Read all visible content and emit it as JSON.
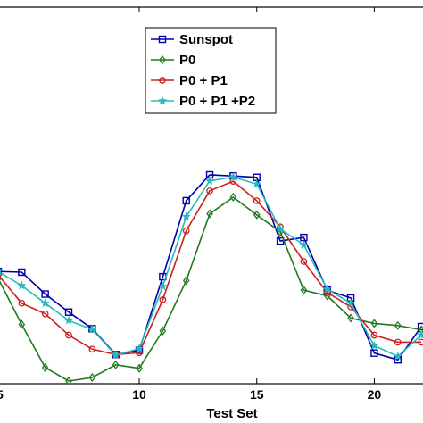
{
  "chart_data": {
    "type": "line",
    "title": "",
    "xlabel": "Test Set",
    "ylabel": "",
    "xlim": [
      4.0,
      22.3
    ],
    "ylim": [
      0,
      1
    ],
    "x_ticks": [
      10,
      15,
      20
    ],
    "x_tick_labels": [
      "10",
      "15",
      "20"
    ],
    "y_ticks": [],
    "grid": false,
    "legend_position": "top-center",
    "x": [
      4,
      5,
      6,
      7,
      8,
      9,
      10,
      11,
      12,
      13,
      14,
      15,
      16,
      17,
      18,
      19,
      20,
      21,
      22
    ],
    "series": [
      {
        "name": "Sunspot",
        "color": "#0000aa",
        "marker": "square",
        "values": [
          0.3,
          0.298,
          0.236,
          0.185,
          0.138,
          0.065,
          0.077,
          0.285,
          0.5,
          0.573,
          0.57,
          0.566,
          0.386,
          0.396,
          0.247,
          0.225,
          0.069,
          0.05,
          0.144
        ]
      },
      {
        "name": "P0",
        "color": "#1f7a1f",
        "marker": "diamond",
        "values": [
          0.28,
          0.15,
          0.028,
          -0.01,
          0.0,
          0.036,
          0.026,
          0.132,
          0.274,
          0.463,
          0.51,
          0.46,
          0.412,
          0.247,
          0.231,
          0.168,
          0.153,
          0.147,
          0.135
        ]
      },
      {
        "name": "P0 + P1",
        "color": "#cc2020",
        "marker": "circle",
        "values": [
          0.29,
          0.21,
          0.18,
          0.12,
          0.08,
          0.065,
          0.07,
          0.22,
          0.415,
          0.528,
          0.555,
          0.5,
          0.426,
          0.328,
          0.24,
          0.2,
          0.12,
          0.1,
          0.1
        ]
      },
      {
        "name": "P0 + P1 +P2",
        "color": "#22bbbb",
        "marker": "star",
        "values": [
          0.3,
          0.26,
          0.21,
          0.161,
          0.136,
          0.063,
          0.082,
          0.258,
          0.455,
          0.556,
          0.567,
          0.547,
          0.42,
          0.375,
          0.25,
          0.21,
          0.09,
          0.06,
          0.12
        ]
      }
    ]
  }
}
